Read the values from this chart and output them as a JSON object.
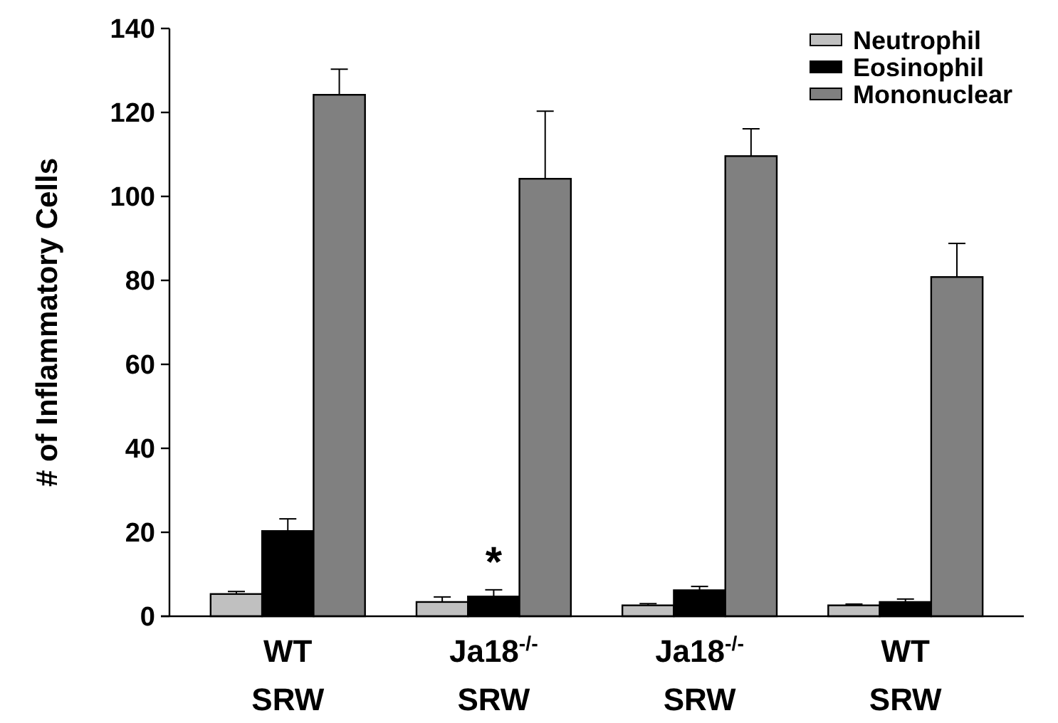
{
  "chart_data": {
    "type": "bar",
    "ylabel": "# of Inflammatory Cells",
    "categories": [
      "WT\nSRW",
      "Ja18$^{-/-}$\nSRW",
      "Ja18$^{-/-}$\nSRW",
      "WT\nSRW"
    ],
    "series": [
      {
        "name": "Neutrophil",
        "color": "#c0c0c0",
        "values": [
          5.3,
          3.4,
          2.6,
          2.6
        ],
        "errors": [
          [
            5.3,
            5.9
          ],
          [
            3.4,
            4.6
          ],
          [
            2.6,
            3.0
          ],
          [
            2.6,
            2.9
          ]
        ]
      },
      {
        "name": "Eosinophil",
        "color": "#000000",
        "values": [
          20.3,
          4.7,
          6.2,
          3.4
        ],
        "errors": [
          [
            20.3,
            23.2
          ],
          [
            4.7,
            6.3
          ],
          [
            6.2,
            7.1
          ],
          [
            3.4,
            4.1
          ]
        ]
      },
      {
        "name": "Mononuclear",
        "color": "#808080",
        "values": [
          124.2,
          104.2,
          109.6,
          80.8
        ],
        "errors": [
          [
            124.2,
            130.3
          ],
          [
            104.2,
            120.3
          ],
          [
            109.6,
            116.1
          ],
          [
            80.8,
            88.8
          ]
        ]
      }
    ],
    "ylim": [
      0,
      140
    ],
    "yticks": [
      0,
      20,
      40,
      60,
      80,
      100,
      120,
      140
    ],
    "grid": false,
    "legend": "top right",
    "annotations": [
      {
        "text": "*",
        "x": "Ja18$^{-/-}$\nSRW",
        "y": 4.7
      }
    ]
  }
}
